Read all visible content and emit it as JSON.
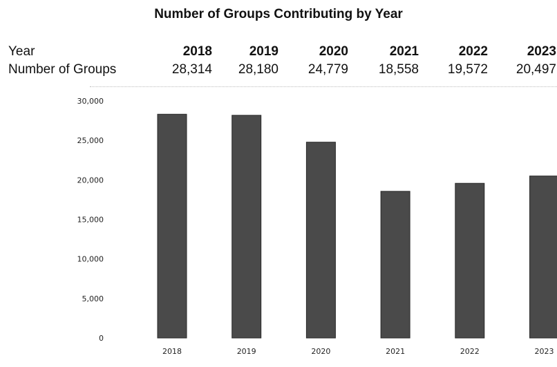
{
  "title": "Number of Groups Contributing by Year",
  "table": {
    "row_labels": [
      "Year",
      "Number of Groups"
    ],
    "years": [
      "2018",
      "2019",
      "2020",
      "2021",
      "2022",
      "2023"
    ],
    "counts": [
      "28,314",
      "28,180",
      "24,779",
      "18,558",
      "19,572",
      "20,497"
    ]
  },
  "colors": {
    "bar": "#4a4a4a",
    "bar_edge": "#2a2a2a"
  },
  "chart_data": {
    "type": "bar",
    "title": "Number of Groups Contributing by Year",
    "xlabel": "",
    "ylabel": "",
    "categories": [
      "2018",
      "2019",
      "2020",
      "2021",
      "2022",
      "2023"
    ],
    "values": [
      28314,
      28180,
      24779,
      18558,
      19572,
      20497
    ],
    "ylim": [
      0,
      30000
    ],
    "y_ticks": [
      0,
      5000,
      10000,
      15000,
      20000,
      25000,
      30000
    ],
    "y_tick_labels": [
      "0",
      "5,000",
      "10,000",
      "15,000",
      "20,000",
      "25,000",
      "30,000"
    ],
    "grid": false,
    "legend": "none"
  }
}
